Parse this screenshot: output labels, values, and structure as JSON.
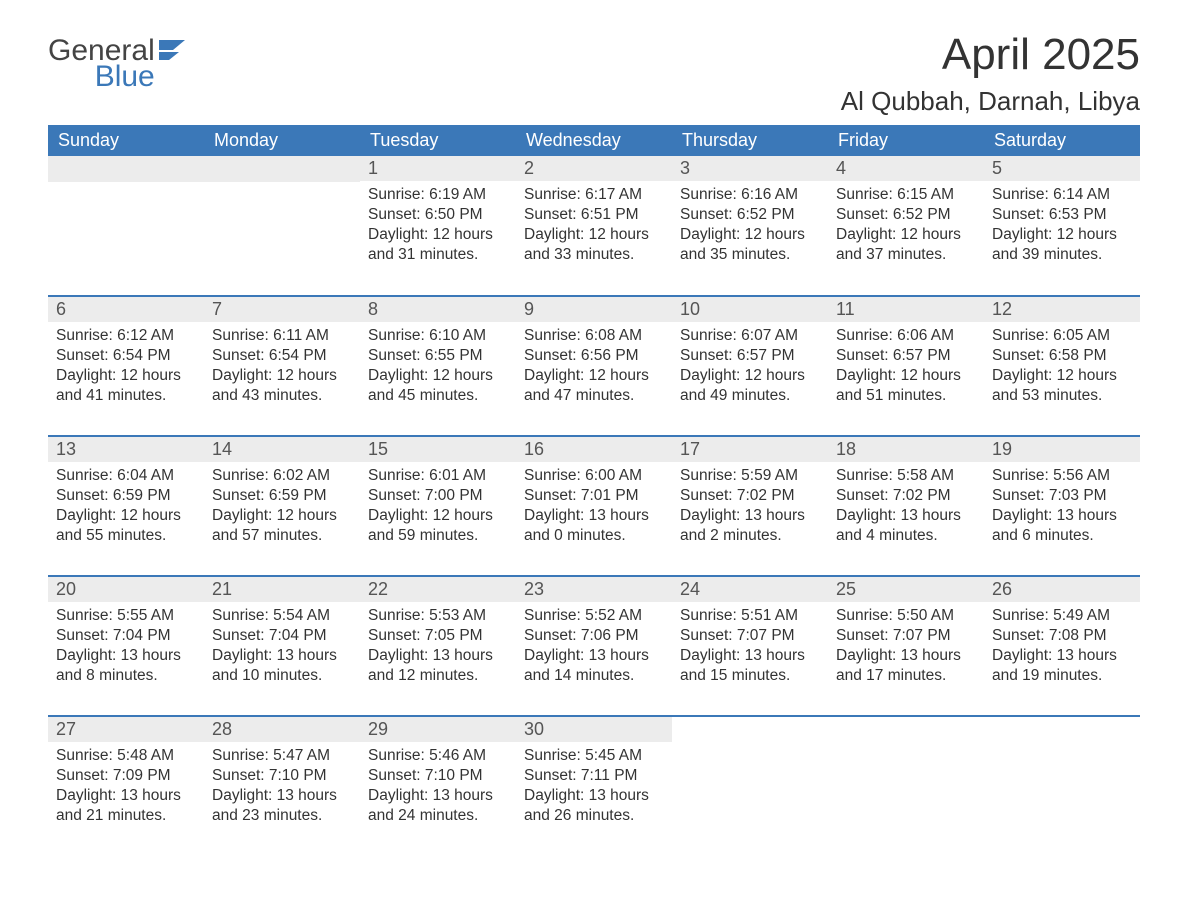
{
  "logo": {
    "general": "General",
    "blue": "Blue"
  },
  "title": "April 2025",
  "location": "Al Qubbah, Darnah, Libya",
  "colors": {
    "header_bg": "#3b78b8",
    "header_text": "#ffffff",
    "daynum_bg": "#ececec",
    "border": "#3b78b8",
    "text": "#333333"
  },
  "weekdays": [
    "Sunday",
    "Monday",
    "Tuesday",
    "Wednesday",
    "Thursday",
    "Friday",
    "Saturday"
  ],
  "weeks": [
    [
      null,
      null,
      {
        "n": "1",
        "sr": "Sunrise: 6:19 AM",
        "ss": "Sunset: 6:50 PM",
        "d1": "Daylight: 12 hours",
        "d2": "and 31 minutes."
      },
      {
        "n": "2",
        "sr": "Sunrise: 6:17 AM",
        "ss": "Sunset: 6:51 PM",
        "d1": "Daylight: 12 hours",
        "d2": "and 33 minutes."
      },
      {
        "n": "3",
        "sr": "Sunrise: 6:16 AM",
        "ss": "Sunset: 6:52 PM",
        "d1": "Daylight: 12 hours",
        "d2": "and 35 minutes."
      },
      {
        "n": "4",
        "sr": "Sunrise: 6:15 AM",
        "ss": "Sunset: 6:52 PM",
        "d1": "Daylight: 12 hours",
        "d2": "and 37 minutes."
      },
      {
        "n": "5",
        "sr": "Sunrise: 6:14 AM",
        "ss": "Sunset: 6:53 PM",
        "d1": "Daylight: 12 hours",
        "d2": "and 39 minutes."
      }
    ],
    [
      {
        "n": "6",
        "sr": "Sunrise: 6:12 AM",
        "ss": "Sunset: 6:54 PM",
        "d1": "Daylight: 12 hours",
        "d2": "and 41 minutes."
      },
      {
        "n": "7",
        "sr": "Sunrise: 6:11 AM",
        "ss": "Sunset: 6:54 PM",
        "d1": "Daylight: 12 hours",
        "d2": "and 43 minutes."
      },
      {
        "n": "8",
        "sr": "Sunrise: 6:10 AM",
        "ss": "Sunset: 6:55 PM",
        "d1": "Daylight: 12 hours",
        "d2": "and 45 minutes."
      },
      {
        "n": "9",
        "sr": "Sunrise: 6:08 AM",
        "ss": "Sunset: 6:56 PM",
        "d1": "Daylight: 12 hours",
        "d2": "and 47 minutes."
      },
      {
        "n": "10",
        "sr": "Sunrise: 6:07 AM",
        "ss": "Sunset: 6:57 PM",
        "d1": "Daylight: 12 hours",
        "d2": "and 49 minutes."
      },
      {
        "n": "11",
        "sr": "Sunrise: 6:06 AM",
        "ss": "Sunset: 6:57 PM",
        "d1": "Daylight: 12 hours",
        "d2": "and 51 minutes."
      },
      {
        "n": "12",
        "sr": "Sunrise: 6:05 AM",
        "ss": "Sunset: 6:58 PM",
        "d1": "Daylight: 12 hours",
        "d2": "and 53 minutes."
      }
    ],
    [
      {
        "n": "13",
        "sr": "Sunrise: 6:04 AM",
        "ss": "Sunset: 6:59 PM",
        "d1": "Daylight: 12 hours",
        "d2": "and 55 minutes."
      },
      {
        "n": "14",
        "sr": "Sunrise: 6:02 AM",
        "ss": "Sunset: 6:59 PM",
        "d1": "Daylight: 12 hours",
        "d2": "and 57 minutes."
      },
      {
        "n": "15",
        "sr": "Sunrise: 6:01 AM",
        "ss": "Sunset: 7:00 PM",
        "d1": "Daylight: 12 hours",
        "d2": "and 59 minutes."
      },
      {
        "n": "16",
        "sr": "Sunrise: 6:00 AM",
        "ss": "Sunset: 7:01 PM",
        "d1": "Daylight: 13 hours",
        "d2": "and 0 minutes."
      },
      {
        "n": "17",
        "sr": "Sunrise: 5:59 AM",
        "ss": "Sunset: 7:02 PM",
        "d1": "Daylight: 13 hours",
        "d2": "and 2 minutes."
      },
      {
        "n": "18",
        "sr": "Sunrise: 5:58 AM",
        "ss": "Sunset: 7:02 PM",
        "d1": "Daylight: 13 hours",
        "d2": "and 4 minutes."
      },
      {
        "n": "19",
        "sr": "Sunrise: 5:56 AM",
        "ss": "Sunset: 7:03 PM",
        "d1": "Daylight: 13 hours",
        "d2": "and 6 minutes."
      }
    ],
    [
      {
        "n": "20",
        "sr": "Sunrise: 5:55 AM",
        "ss": "Sunset: 7:04 PM",
        "d1": "Daylight: 13 hours",
        "d2": "and 8 minutes."
      },
      {
        "n": "21",
        "sr": "Sunrise: 5:54 AM",
        "ss": "Sunset: 7:04 PM",
        "d1": "Daylight: 13 hours",
        "d2": "and 10 minutes."
      },
      {
        "n": "22",
        "sr": "Sunrise: 5:53 AM",
        "ss": "Sunset: 7:05 PM",
        "d1": "Daylight: 13 hours",
        "d2": "and 12 minutes."
      },
      {
        "n": "23",
        "sr": "Sunrise: 5:52 AM",
        "ss": "Sunset: 7:06 PM",
        "d1": "Daylight: 13 hours",
        "d2": "and 14 minutes."
      },
      {
        "n": "24",
        "sr": "Sunrise: 5:51 AM",
        "ss": "Sunset: 7:07 PM",
        "d1": "Daylight: 13 hours",
        "d2": "and 15 minutes."
      },
      {
        "n": "25",
        "sr": "Sunrise: 5:50 AM",
        "ss": "Sunset: 7:07 PM",
        "d1": "Daylight: 13 hours",
        "d2": "and 17 minutes."
      },
      {
        "n": "26",
        "sr": "Sunrise: 5:49 AM",
        "ss": "Sunset: 7:08 PM",
        "d1": "Daylight: 13 hours",
        "d2": "and 19 minutes."
      }
    ],
    [
      {
        "n": "27",
        "sr": "Sunrise: 5:48 AM",
        "ss": "Sunset: 7:09 PM",
        "d1": "Daylight: 13 hours",
        "d2": "and 21 minutes."
      },
      {
        "n": "28",
        "sr": "Sunrise: 5:47 AM",
        "ss": "Sunset: 7:10 PM",
        "d1": "Daylight: 13 hours",
        "d2": "and 23 minutes."
      },
      {
        "n": "29",
        "sr": "Sunrise: 5:46 AM",
        "ss": "Sunset: 7:10 PM",
        "d1": "Daylight: 13 hours",
        "d2": "and 24 minutes."
      },
      {
        "n": "30",
        "sr": "Sunrise: 5:45 AM",
        "ss": "Sunset: 7:11 PM",
        "d1": "Daylight: 13 hours",
        "d2": "and 26 minutes."
      },
      null,
      null,
      null
    ]
  ]
}
